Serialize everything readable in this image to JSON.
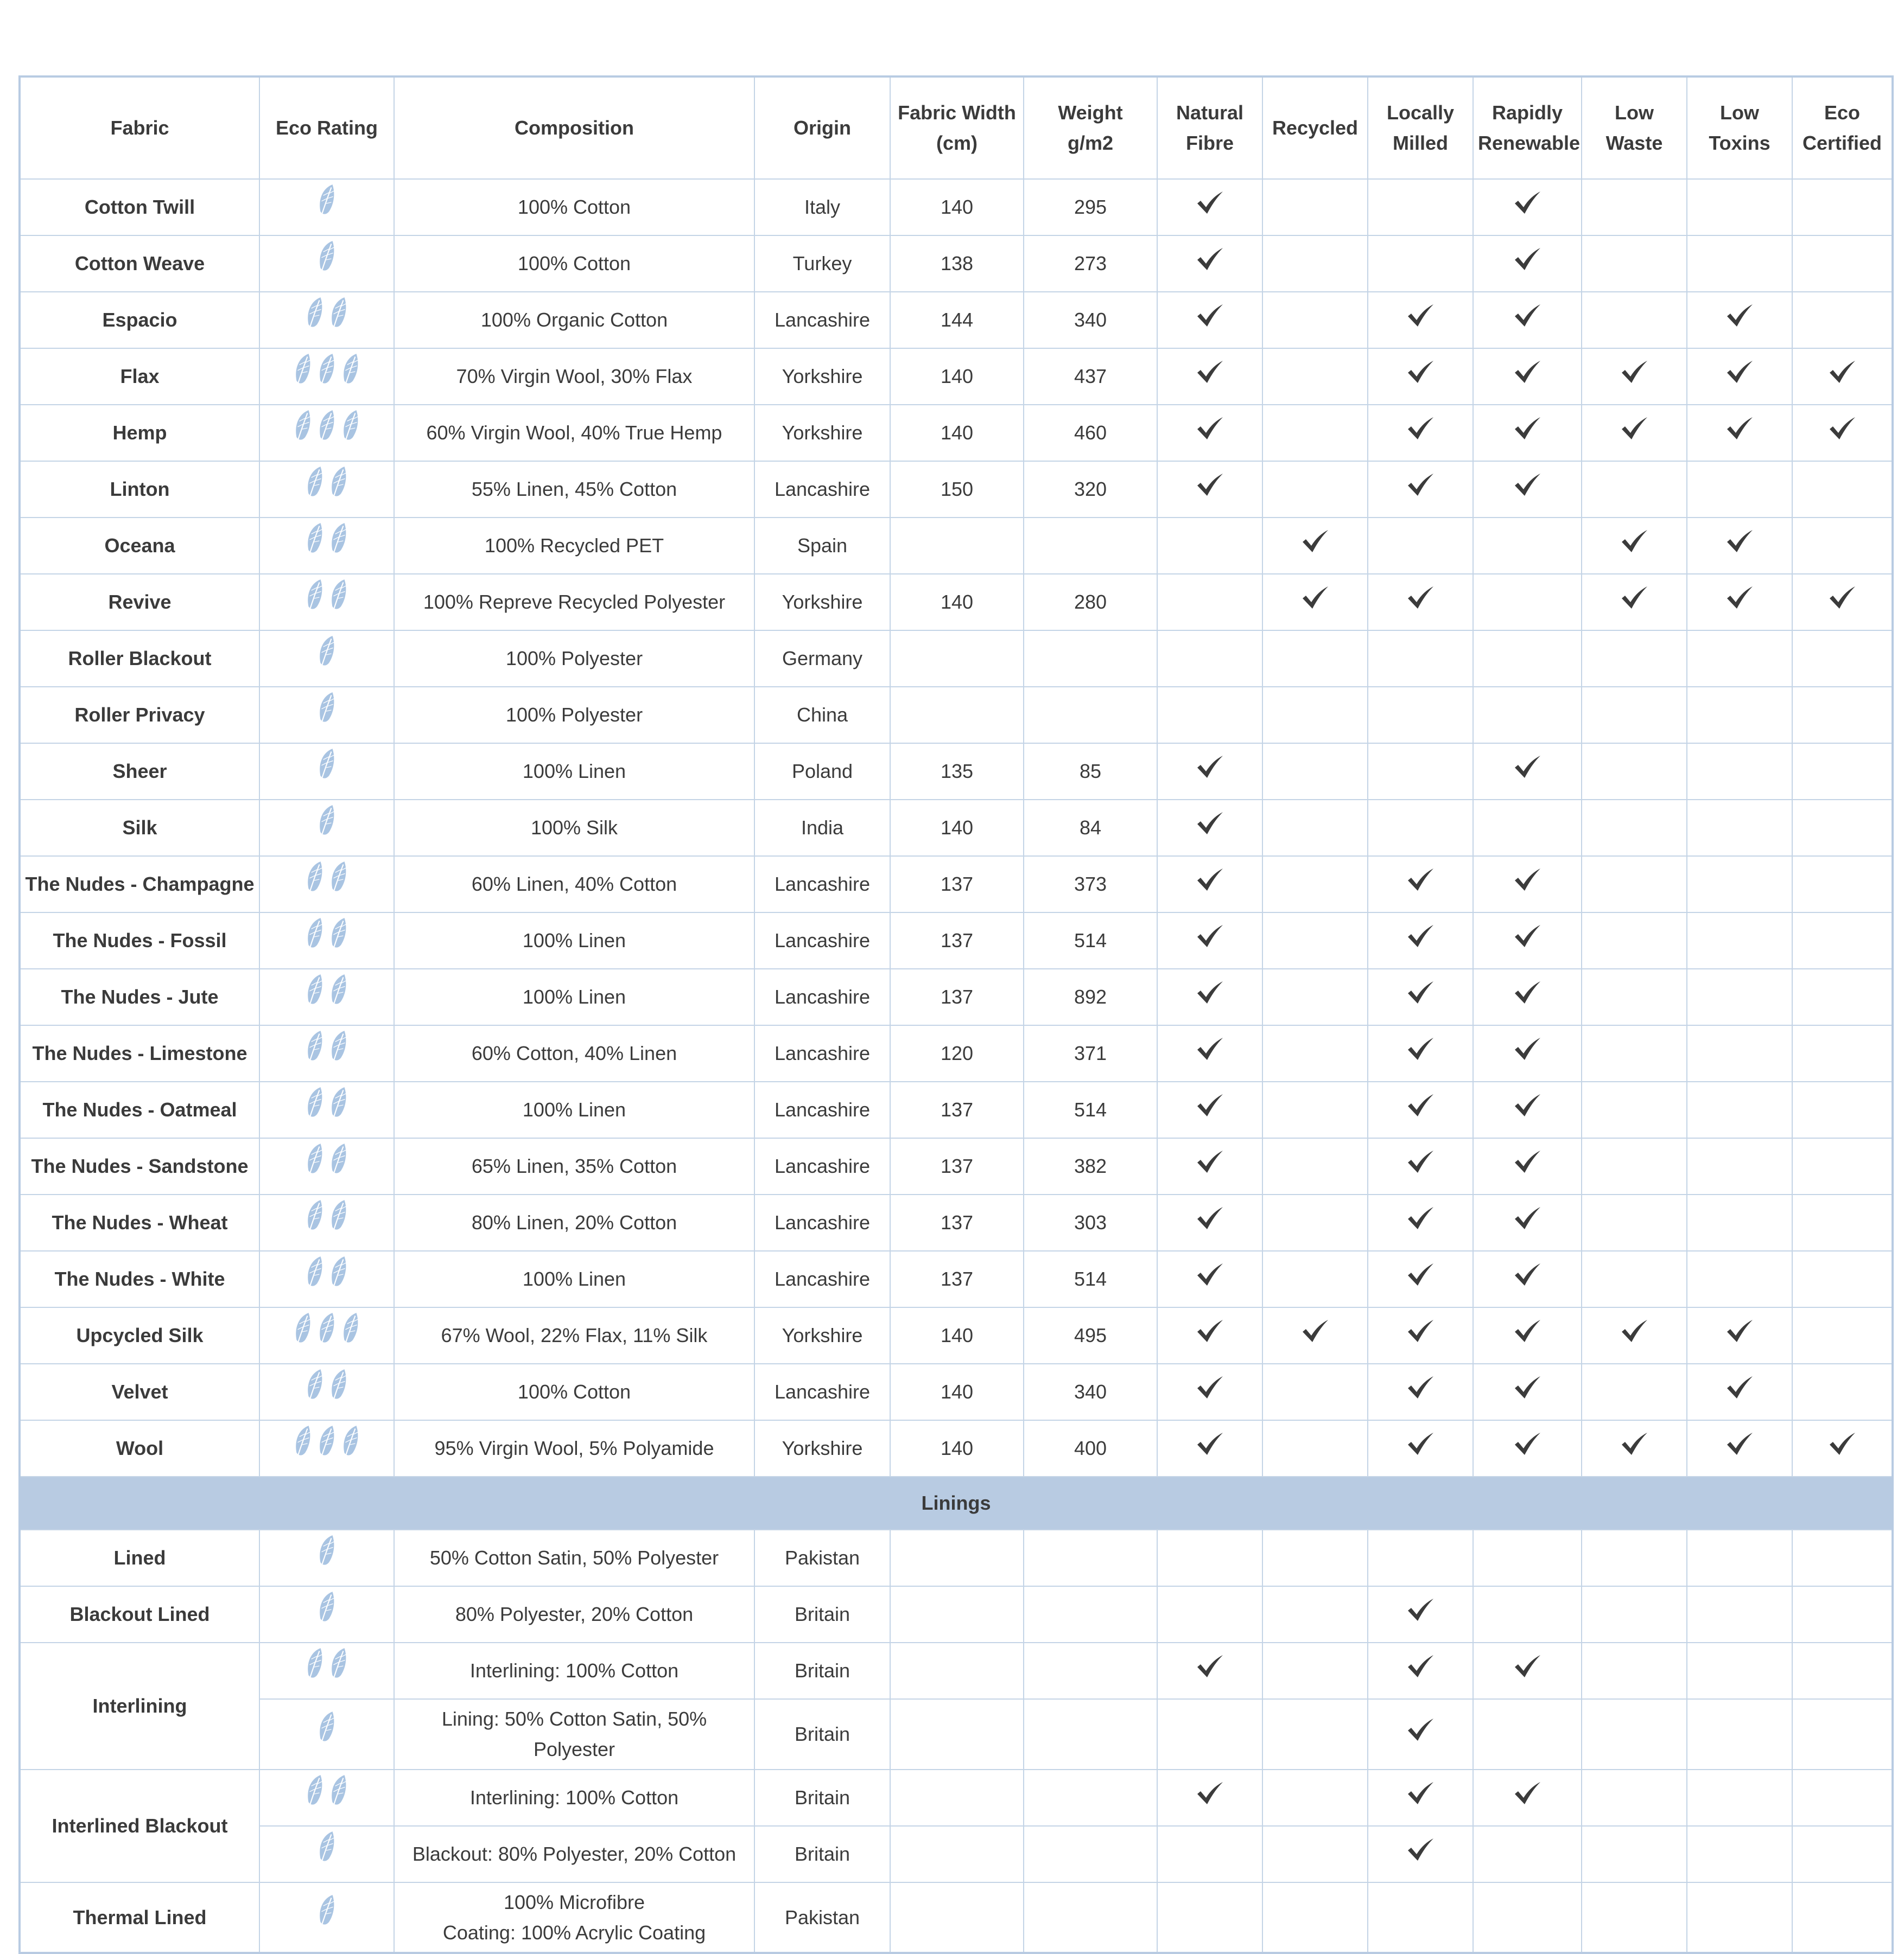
{
  "colors": {
    "leaf": "#a9c4e2",
    "border": "#c4d4e6",
    "section_bg": "#b8cbe2",
    "check": "#3b3b3b"
  },
  "icons": {
    "rating": "leaf-icon",
    "tick": "checkmark-icon"
  },
  "headers": [
    [
      "Fabric"
    ],
    [
      "Eco Rating"
    ],
    [
      "Composition"
    ],
    [
      "Origin"
    ],
    [
      "Fabric Width",
      "(cm)"
    ],
    [
      "Weight",
      "g/m2"
    ],
    [
      "Natural",
      "Fibre"
    ],
    [
      "Recycled"
    ],
    [
      "Locally",
      "Milled"
    ],
    [
      "Rapidly",
      "Renewable"
    ],
    [
      "Low",
      "Waste"
    ],
    [
      "Low",
      "Toxins"
    ],
    [
      "Eco",
      "Certified"
    ]
  ],
  "fabrics": [
    {
      "name": "Cotton Twill",
      "rating": 1,
      "composition": [
        "100% Cotton"
      ],
      "origin": "Italy",
      "width": "140",
      "weight": "295",
      "checks": [
        1,
        0,
        0,
        1,
        0,
        0,
        0
      ]
    },
    {
      "name": "Cotton Weave",
      "rating": 1,
      "composition": [
        "100% Cotton"
      ],
      "origin": "Turkey",
      "width": "138",
      "weight": "273",
      "checks": [
        1,
        0,
        0,
        1,
        0,
        0,
        0
      ]
    },
    {
      "name": "Espacio",
      "rating": 2,
      "composition": [
        "100% Organic Cotton"
      ],
      "origin": "Lancashire",
      "width": "144",
      "weight": "340",
      "checks": [
        1,
        0,
        1,
        1,
        0,
        1,
        0
      ]
    },
    {
      "name": "Flax",
      "rating": 3,
      "composition": [
        "70% Virgin Wool, 30% Flax"
      ],
      "origin": "Yorkshire",
      "width": "140",
      "weight": "437",
      "checks": [
        1,
        0,
        1,
        1,
        1,
        1,
        1
      ]
    },
    {
      "name": "Hemp",
      "rating": 3,
      "composition": [
        "60% Virgin Wool, 40% True Hemp"
      ],
      "origin": "Yorkshire",
      "width": "140",
      "weight": "460",
      "checks": [
        1,
        0,
        1,
        1,
        1,
        1,
        1
      ]
    },
    {
      "name": "Linton",
      "rating": 2,
      "composition": [
        "55% Linen, 45% Cotton"
      ],
      "origin": "Lancashire",
      "width": "150",
      "weight": "320",
      "checks": [
        1,
        0,
        1,
        1,
        0,
        0,
        0
      ]
    },
    {
      "name": "Oceana",
      "rating": 2,
      "composition": [
        "100% Recycled PET"
      ],
      "origin": "Spain",
      "width": "",
      "weight": "",
      "checks": [
        0,
        1,
        0,
        0,
        1,
        1,
        0
      ]
    },
    {
      "name": "Revive",
      "rating": 2,
      "composition": [
        "100% Repreve Recycled Polyester"
      ],
      "origin": "Yorkshire",
      "width": "140",
      "weight": "280",
      "checks": [
        0,
        1,
        1,
        0,
        1,
        1,
        1
      ]
    },
    {
      "name": "Roller Blackout",
      "rating": 1,
      "composition": [
        "100% Polyester"
      ],
      "origin": "Germany",
      "width": "",
      "weight": "",
      "checks": [
        0,
        0,
        0,
        0,
        0,
        0,
        0
      ]
    },
    {
      "name": "Roller Privacy",
      "rating": 1,
      "composition": [
        "100% Polyester"
      ],
      "origin": "China",
      "width": "",
      "weight": "",
      "checks": [
        0,
        0,
        0,
        0,
        0,
        0,
        0
      ]
    },
    {
      "name": "Sheer",
      "rating": 1,
      "composition": [
        "100% Linen"
      ],
      "origin": "Poland",
      "width": "135",
      "weight": "85",
      "checks": [
        1,
        0,
        0,
        1,
        0,
        0,
        0
      ]
    },
    {
      "name": "Silk",
      "rating": 1,
      "composition": [
        "100% Silk"
      ],
      "origin": "India",
      "width": "140",
      "weight": "84",
      "checks": [
        1,
        0,
        0,
        0,
        0,
        0,
        0
      ]
    },
    {
      "name": "The Nudes - Champagne",
      "rating": 2,
      "composition": [
        "60% Linen, 40% Cotton"
      ],
      "origin": "Lancashire",
      "width": "137",
      "weight": "373",
      "checks": [
        1,
        0,
        1,
        1,
        0,
        0,
        0
      ]
    },
    {
      "name": "The Nudes - Fossil",
      "rating": 2,
      "composition": [
        "100% Linen"
      ],
      "origin": "Lancashire",
      "width": "137",
      "weight": "514",
      "checks": [
        1,
        0,
        1,
        1,
        0,
        0,
        0
      ]
    },
    {
      "name": "The Nudes - Jute",
      "rating": 2,
      "composition": [
        "100% Linen"
      ],
      "origin": "Lancashire",
      "width": "137",
      "weight": "892",
      "checks": [
        1,
        0,
        1,
        1,
        0,
        0,
        0
      ]
    },
    {
      "name": "The Nudes - Limestone",
      "rating": 2,
      "composition": [
        "60% Cotton, 40% Linen"
      ],
      "origin": "Lancashire",
      "width": "120",
      "weight": "371",
      "checks": [
        1,
        0,
        1,
        1,
        0,
        0,
        0
      ]
    },
    {
      "name": "The Nudes - Oatmeal",
      "rating": 2,
      "composition": [
        "100% Linen"
      ],
      "origin": "Lancashire",
      "width": "137",
      "weight": "514",
      "checks": [
        1,
        0,
        1,
        1,
        0,
        0,
        0
      ]
    },
    {
      "name": "The Nudes - Sandstone",
      "rating": 2,
      "composition": [
        "65% Linen, 35% Cotton"
      ],
      "origin": "Lancashire",
      "width": "137",
      "weight": "382",
      "checks": [
        1,
        0,
        1,
        1,
        0,
        0,
        0
      ]
    },
    {
      "name": "The Nudes - Wheat",
      "rating": 2,
      "composition": [
        "80% Linen, 20% Cotton"
      ],
      "origin": "Lancashire",
      "width": "137",
      "weight": "303",
      "checks": [
        1,
        0,
        1,
        1,
        0,
        0,
        0
      ]
    },
    {
      "name": "The Nudes - White",
      "rating": 2,
      "composition": [
        "100% Linen"
      ],
      "origin": "Lancashire",
      "width": "137",
      "weight": "514",
      "checks": [
        1,
        0,
        1,
        1,
        0,
        0,
        0
      ]
    },
    {
      "name": "Upcycled Silk",
      "rating": 3,
      "composition": [
        "67% Wool, 22% Flax, 11% Silk"
      ],
      "origin": "Yorkshire",
      "width": "140",
      "weight": "495",
      "checks": [
        1,
        1,
        1,
        1,
        1,
        1,
        0
      ]
    },
    {
      "name": "Velvet",
      "rating": 2,
      "composition": [
        "100% Cotton"
      ],
      "origin": "Lancashire",
      "width": "140",
      "weight": "340",
      "checks": [
        1,
        0,
        1,
        1,
        0,
        1,
        0
      ]
    },
    {
      "name": "Wool",
      "rating": 3,
      "composition": [
        "95% Virgin Wool, 5% Polyamide"
      ],
      "origin": "Yorkshire",
      "width": "140",
      "weight": "400",
      "checks": [
        1,
        0,
        1,
        1,
        1,
        1,
        1
      ]
    }
  ],
  "linings_label": "Linings",
  "linings": [
    {
      "name": "Lined",
      "parts": [
        {
          "rating": 1,
          "composition": [
            "50% Cotton Satin, 50% Polyester"
          ],
          "origin": "Pakistan",
          "width": "",
          "weight": "",
          "checks": [
            0,
            0,
            0,
            0,
            0,
            0,
            0
          ]
        }
      ]
    },
    {
      "name": "Blackout Lined",
      "parts": [
        {
          "rating": 1,
          "composition": [
            "80% Polyester, 20% Cotton"
          ],
          "origin": "Britain",
          "width": "",
          "weight": "",
          "checks": [
            0,
            0,
            1,
            0,
            0,
            0,
            0
          ]
        }
      ]
    },
    {
      "name": "Interlining",
      "parts": [
        {
          "rating": 2,
          "composition": [
            "Interlining: 100% Cotton"
          ],
          "origin": "Britain",
          "width": "",
          "weight": "",
          "checks": [
            1,
            0,
            1,
            1,
            0,
            0,
            0
          ]
        },
        {
          "rating": 1,
          "composition": [
            "Lining: 50% Cotton Satin, 50%",
            "Polyester"
          ],
          "origin": "Britain",
          "width": "",
          "weight": "",
          "checks": [
            0,
            0,
            1,
            0,
            0,
            0,
            0
          ]
        }
      ]
    },
    {
      "name": "Interlined Blackout",
      "parts": [
        {
          "rating": 2,
          "composition": [
            "Interlining: 100% Cotton"
          ],
          "origin": "Britain",
          "width": "",
          "weight": "",
          "checks": [
            1,
            0,
            1,
            1,
            0,
            0,
            0
          ]
        },
        {
          "rating": 1,
          "composition": [
            "Blackout: 80% Polyester, 20% Cotton"
          ],
          "origin": "Britain",
          "width": "",
          "weight": "",
          "checks": [
            0,
            0,
            1,
            0,
            0,
            0,
            0
          ]
        }
      ]
    },
    {
      "name": "Thermal Lined",
      "parts": [
        {
          "rating": 1,
          "composition": [
            "100% Microfibre",
            "Coating: 100% Acrylic Coating"
          ],
          "origin": "Pakistan",
          "width": "",
          "weight": "",
          "checks": [
            0,
            0,
            0,
            0,
            0,
            0,
            0
          ]
        }
      ]
    }
  ]
}
